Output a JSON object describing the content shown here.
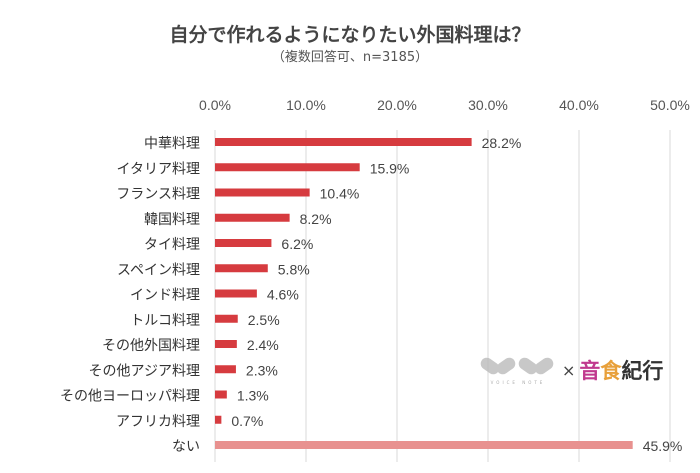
{
  "chart_data": {
    "type": "bar",
    "orientation": "horizontal",
    "title": "自分で作れるようになりたい外国料理は？",
    "subtitle": "（複数回答可、n=3185）",
    "categories": [
      "中華料理",
      "イタリア料理",
      "フランス料理",
      "韓国料理",
      "タイ料理",
      "スペイン料理",
      "インド料理",
      "トルコ料理",
      "その他外国料理",
      "その他アジア料理",
      "その他ヨーロッパ料理",
      "アフリカ料理",
      "ない"
    ],
    "values": [
      28.2,
      15.9,
      10.4,
      8.2,
      6.2,
      5.8,
      4.6,
      2.5,
      2.4,
      2.3,
      1.3,
      0.7,
      45.9
    ],
    "data_labels": [
      "28.2%",
      "15.9%",
      "10.4%",
      "8.2%",
      "6.2%",
      "5.8%",
      "4.6%",
      "2.5%",
      "2.4%",
      "2.3%",
      "1.3%",
      "0.7%",
      "45.9%"
    ],
    "xlim": [
      0,
      50
    ],
    "x_ticks": [
      "0.0%",
      "10.0%",
      "20.0%",
      "30.0%",
      "40.0%",
      "50.0%"
    ],
    "x_axis_position": "top",
    "grid": true,
    "colors": {
      "bar": "#d63b3f",
      "highlight_bar": "#e8918f",
      "grid": "#d9d9d9"
    }
  },
  "logo": {
    "mark": "VOICE NOTE",
    "times": "×",
    "brand": [
      "音",
      "食",
      "紀行"
    ],
    "brand_colors": [
      "#c0398e",
      "#e8a03a",
      "#333333"
    ]
  }
}
